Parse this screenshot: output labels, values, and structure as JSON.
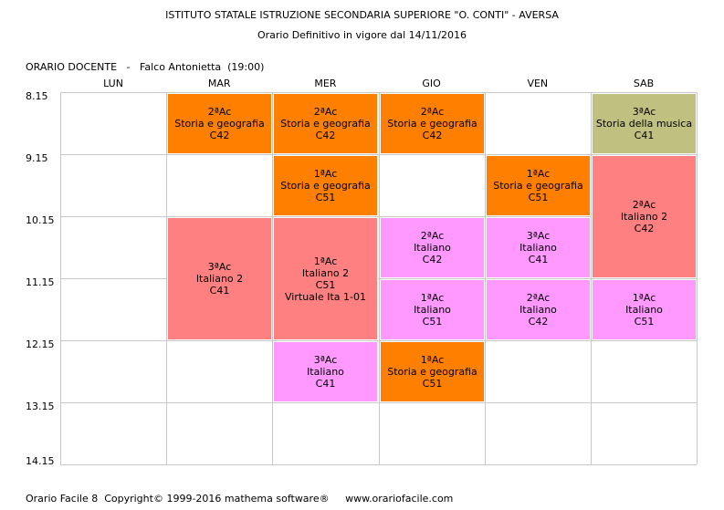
{
  "header": {
    "school": "ISTITUTO STATALE ISTRUZIONE SECONDARIA SUPERIORE \"O. CONTI\" - AVERSA",
    "subtitle": "Orario Definitivo in vigore dal 14/11/2016"
  },
  "teacher_line": "ORARIO DOCENTE   -   Falco Antonietta  (19:00)",
  "days": [
    "LUN",
    "MAR",
    "MER",
    "GIO",
    "VEN",
    "SAB"
  ],
  "times": [
    "8.15",
    "9.15",
    "10.15",
    "11.15",
    "12.15",
    "13.15",
    "14.15"
  ],
  "colors": {
    "orange": "#ff8000",
    "olive": "#c0c080",
    "red": "#ff8080",
    "pink": "#ff99ff",
    "grid": "#c8c8c8"
  },
  "lessons": [
    {
      "day": "MAR",
      "start": "8.15",
      "span": 1,
      "color": "orange",
      "lines": [
        "2ªAc",
        "Storia e geografia",
        "C42"
      ]
    },
    {
      "day": "MER",
      "start": "8.15",
      "span": 1,
      "color": "orange",
      "lines": [
        "2ªAc",
        "Storia e geografia",
        "C42"
      ]
    },
    {
      "day": "GIO",
      "start": "8.15",
      "span": 1,
      "color": "orange",
      "lines": [
        "2ªAc",
        "Storia e geografia",
        "C42"
      ]
    },
    {
      "day": "SAB",
      "start": "8.15",
      "span": 1,
      "color": "olive",
      "lines": [
        "3ªAc",
        "Storia della musica",
        "C41"
      ]
    },
    {
      "day": "MER",
      "start": "9.15",
      "span": 1,
      "color": "orange",
      "lines": [
        "1ªAc",
        "Storia e geografia",
        "C51"
      ]
    },
    {
      "day": "VEN",
      "start": "9.15",
      "span": 1,
      "color": "orange",
      "lines": [
        "1ªAc",
        "Storia e geografia",
        "C51"
      ]
    },
    {
      "day": "SAB",
      "start": "9.15",
      "span": 2,
      "color": "red",
      "lines": [
        "2ªAc",
        "Italiano 2",
        "C42"
      ]
    },
    {
      "day": "MAR",
      "start": "10.15",
      "span": 2,
      "color": "red",
      "lines": [
        "3ªAc",
        "Italiano 2",
        "C41"
      ]
    },
    {
      "day": "MER",
      "start": "10.15",
      "span": 2,
      "color": "red",
      "lines": [
        "1ªAc",
        "Italiano 2",
        "C51",
        "Virtuale Ita 1-01"
      ]
    },
    {
      "day": "GIO",
      "start": "10.15",
      "span": 1,
      "color": "pink",
      "lines": [
        "2ªAc",
        "Italiano",
        "C42"
      ]
    },
    {
      "day": "VEN",
      "start": "10.15",
      "span": 1,
      "color": "pink",
      "lines": [
        "3ªAc",
        "Italiano",
        "C41"
      ]
    },
    {
      "day": "GIO",
      "start": "11.15",
      "span": 1,
      "color": "pink",
      "lines": [
        "1ªAc",
        "Italiano",
        "C51"
      ]
    },
    {
      "day": "VEN",
      "start": "11.15",
      "span": 1,
      "color": "pink",
      "lines": [
        "2ªAc",
        "Italiano",
        "C42"
      ]
    },
    {
      "day": "SAB",
      "start": "11.15",
      "span": 1,
      "color": "pink",
      "lines": [
        "1ªAc",
        "Italiano",
        "C51"
      ]
    },
    {
      "day": "MER",
      "start": "12.15",
      "span": 1,
      "color": "pink",
      "lines": [
        "3ªAc",
        "Italiano",
        "C41"
      ]
    },
    {
      "day": "GIO",
      "start": "12.15",
      "span": 1,
      "color": "orange",
      "lines": [
        "1ªAc",
        "Storia e geografia",
        "C51"
      ]
    }
  ],
  "footer": "Orario Facile 8  Copyright© 1999-2016 mathema software®     www.orariofacile.com"
}
